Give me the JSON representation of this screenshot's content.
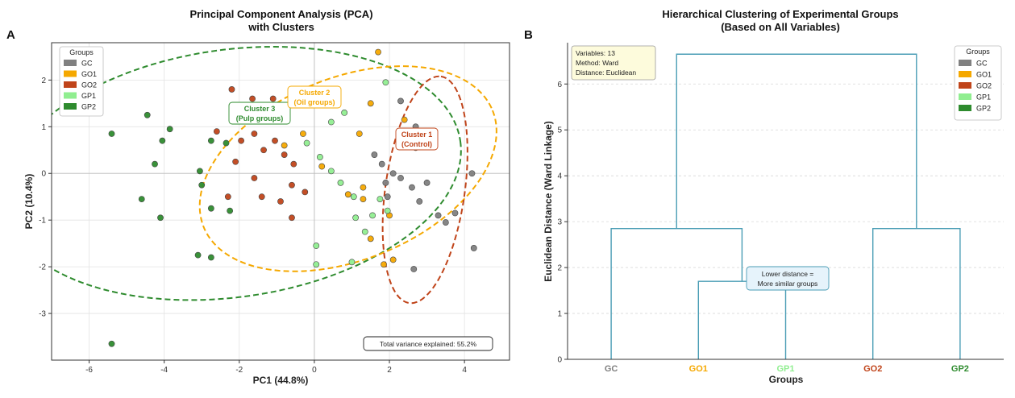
{
  "chart_data": [
    {
      "type": "scatter",
      "panel_letter": "A",
      "title": "Principal Component Analysis (PCA)",
      "subtitle": "with Clusters",
      "xlabel": "PC1 (44.8%)",
      "ylabel": "PC2 (10.4%)",
      "xlim": [
        -7.0,
        5.2
      ],
      "ylim": [
        -4.0,
        2.8
      ],
      "xticks": [
        -6,
        -4,
        -2,
        0,
        2,
        4
      ],
      "yticks": [
        -3,
        -2,
        -1,
        0,
        1,
        2
      ],
      "grid": true,
      "legend": {
        "title": "Groups",
        "position": "top-left",
        "entries": [
          "GC",
          "GO1",
          "GO2",
          "GP1",
          "GP2"
        ]
      },
      "colors": {
        "GC": "#808080",
        "GO1": "#f5a800",
        "GO2": "#c0441a",
        "GP1": "#90ee90",
        "GP2": "#2e8b2e"
      },
      "series": [
        {
          "name": "GC",
          "points": [
            [
              2.3,
              1.55
            ],
            [
              2.7,
              1.0
            ],
            [
              1.6,
              0.4
            ],
            [
              1.8,
              0.2
            ],
            [
              2.1,
              0.0
            ],
            [
              1.9,
              -0.2
            ],
            [
              2.3,
              -0.1
            ],
            [
              2.6,
              -0.3
            ],
            [
              2.8,
              -0.6
            ],
            [
              1.95,
              -0.5
            ],
            [
              3.0,
              -0.2
            ],
            [
              3.3,
              -0.9
            ],
            [
              3.5,
              -1.05
            ],
            [
              3.75,
              -0.85
            ],
            [
              4.2,
              0.0
            ],
            [
              4.25,
              -1.6
            ],
            [
              2.65,
              -2.05
            ]
          ]
        },
        {
          "name": "GO1",
          "points": [
            [
              1.7,
              2.6
            ],
            [
              1.5,
              1.5
            ],
            [
              2.4,
              1.15
            ],
            [
              2.7,
              0.55
            ],
            [
              1.2,
              0.85
            ],
            [
              -0.3,
              0.85
            ],
            [
              -0.8,
              0.6
            ],
            [
              0.2,
              0.15
            ],
            [
              0.9,
              -0.45
            ],
            [
              1.3,
              -0.55
            ],
            [
              2.0,
              -0.9
            ],
            [
              1.5,
              -1.4
            ],
            [
              1.85,
              -1.95
            ],
            [
              2.1,
              -1.85
            ],
            [
              1.3,
              -0.3
            ]
          ]
        },
        {
          "name": "GO2",
          "points": [
            [
              -2.2,
              1.8
            ],
            [
              -1.65,
              1.6
            ],
            [
              -1.1,
              1.6
            ],
            [
              -1.85,
              1.2
            ],
            [
              -2.6,
              0.9
            ],
            [
              -1.6,
              0.85
            ],
            [
              -1.05,
              0.7
            ],
            [
              -0.95,
              1.15
            ],
            [
              -1.35,
              0.5
            ],
            [
              -0.8,
              0.4
            ],
            [
              -0.55,
              0.2
            ],
            [
              -1.95,
              0.7
            ],
            [
              -2.1,
              0.25
            ],
            [
              -1.6,
              -0.1
            ],
            [
              -2.3,
              -0.5
            ],
            [
              -1.4,
              -0.5
            ],
            [
              -0.6,
              -0.25
            ],
            [
              -0.9,
              -0.6
            ],
            [
              -0.25,
              -0.4
            ],
            [
              -0.6,
              -0.95
            ]
          ]
        },
        {
          "name": "GP1",
          "points": [
            [
              1.9,
              1.95
            ],
            [
              0.8,
              1.3
            ],
            [
              0.45,
              1.1
            ],
            [
              -0.2,
              0.65
            ],
            [
              0.15,
              0.35
            ],
            [
              0.45,
              0.05
            ],
            [
              0.7,
              -0.2
            ],
            [
              1.05,
              -0.5
            ],
            [
              1.55,
              -0.9
            ],
            [
              1.75,
              -0.55
            ],
            [
              1.1,
              -0.95
            ],
            [
              1.95,
              -0.8
            ],
            [
              0.05,
              -1.55
            ],
            [
              0.05,
              -1.95
            ],
            [
              1.0,
              -1.9
            ],
            [
              1.35,
              -1.25
            ]
          ]
        },
        {
          "name": "GP2",
          "points": [
            [
              -5.4,
              0.85
            ],
            [
              -4.45,
              1.25
            ],
            [
              -4.05,
              0.7
            ],
            [
              -3.85,
              0.95
            ],
            [
              -4.25,
              0.2
            ],
            [
              -4.6,
              -0.55
            ],
            [
              -4.1,
              -0.95
            ],
            [
              -3.05,
              0.05
            ],
            [
              -3.0,
              -0.25
            ],
            [
              -2.75,
              0.7
            ],
            [
              -2.35,
              0.65
            ],
            [
              -2.75,
              -0.75
            ],
            [
              -2.25,
              -0.8
            ],
            [
              -3.1,
              -1.75
            ],
            [
              -2.75,
              -1.8
            ],
            [
              -5.4,
              -3.65
            ]
          ]
        }
      ],
      "ellipses": [
        {
          "name": "Cluster 3",
          "color": "#2e8b2e",
          "center": [
            -2.2,
            0.0
          ],
          "radii": [
            6.15,
            2.65
          ],
          "angle_deg": 8
        },
        {
          "name": "Cluster 2",
          "color": "#f5a800",
          "center": [
            0.9,
            0.1
          ],
          "radii": [
            4.15,
            1.95
          ],
          "angle_deg": 22
        },
        {
          "name": "Cluster 1",
          "color": "#c0441a",
          "center": [
            2.95,
            -0.35
          ],
          "radii": [
            3.05,
            0.85
          ],
          "angle_deg": 82
        }
      ],
      "annotations": [
        {
          "line1": "Cluster 3",
          "line2": "(Pulp groups)",
          "color": "#2e8b2e",
          "at": [
            -1.4,
            1.35
          ]
        },
        {
          "line1": "Cluster 2",
          "line2": "(Oil groups)",
          "color": "#f5a800",
          "at": [
            -0.05,
            1.75
          ]
        },
        {
          "line1": "Cluster 1",
          "line2": "(Control)",
          "color": "#c0441a",
          "at": [
            2.9,
            0.8
          ]
        }
      ],
      "note": "Total variance explained: 55.2%"
    },
    {
      "type": "dendrogram",
      "panel_letter": "B",
      "title": "Hierarchical Clustering of Experimental Groups",
      "subtitle": "(Based on All Variables)",
      "xlabel": "Groups",
      "ylabel": "Euclidean Distance (Ward Linkage)",
      "ylim": [
        0,
        6.9
      ],
      "yticks": [
        0,
        1,
        2,
        3,
        4,
        5,
        6
      ],
      "grid": true,
      "leaves": [
        "GC",
        "GO1",
        "GP1",
        "GO2",
        "GP2"
      ],
      "leaf_colors": [
        "#808080",
        "#f5a800",
        "#90ee90",
        "#c0441a",
        "#2e8b2e"
      ],
      "merges": [
        {
          "left": "GO1",
          "right": "GP1",
          "height": 1.7
        },
        {
          "left": "GC",
          "right": "(GO1,GP1)",
          "height": 2.85
        },
        {
          "left": "GO2",
          "right": "GP2",
          "height": 2.85
        },
        {
          "left": "(GC,GO1,GP1)",
          "right": "(GO2,GP2)",
          "height": 6.65
        }
      ],
      "link_color": "#4a9db5",
      "info_box": [
        "Variables: 13",
        "Method: Ward",
        "Distance: Euclidean"
      ],
      "callout": [
        "Lower distance =",
        "More similar groups"
      ],
      "legend": {
        "title": "Groups",
        "position": "top-right",
        "entries": [
          "GC",
          "GO1",
          "GO2",
          "GP1",
          "GP2"
        ]
      }
    }
  ]
}
